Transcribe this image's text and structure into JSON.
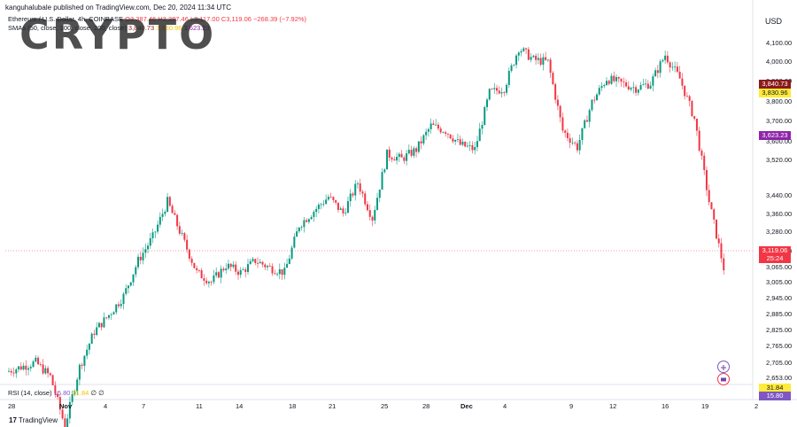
{
  "header": {
    "publisher": "kanguhalubale published on TradingView.com, Dec 20, 2024 11:34 UTC",
    "symbol": "Ethereum / U.S. Dollar, 4h, COINBASE",
    "ohlc": "O3,387.46 H3,387.46 L3,117.00 C3,119.06 −268.39 (−7.92%)",
    "smas_label": "SMAs (50, close, 100, close, 200, close)",
    "sma_values": [
      "3,840.73",
      "3,830.96",
      "3,623.23"
    ]
  },
  "watermark": "CRYPTO",
  "currency": "USD",
  "price_axis": [
    "4,100.00",
    "4,000.00",
    "3,900.00",
    "3,800.00",
    "3,700.00",
    "3,600.00",
    "3,520.00",
    "3,440.00",
    "3,360.00",
    "3,280.00",
    "3,200.00",
    "3,065.00",
    "3,005.00",
    "2,945.00",
    "2,885.00",
    "2,825.00",
    "2,765.00",
    "2,705.00",
    "2,653.00"
  ],
  "price_tags": {
    "sma50": "3,840.73",
    "sma100": "3,830.96",
    "sma200": "3,623.23",
    "last": "3,119.06",
    "countdown": "25:24",
    "rsi": "31.84",
    "rsi_value": "15.80"
  },
  "time_axis": [
    "28",
    "Nov",
    "4",
    "7",
    "11",
    "14",
    "18",
    "21",
    "25",
    "28",
    "Dec",
    "4",
    "9",
    "12",
    "16",
    "19",
    "2"
  ],
  "rsi": {
    "label": "RSI (14, close)",
    "value": "15.80",
    "smoothing": "31.84",
    "extra": "∅ ∅"
  },
  "footer": {
    "brand": "TradingView"
  },
  "colors": {
    "up": "#089981",
    "down": "#f23645",
    "sma50": "#8b1a1a",
    "sma100": "#ffeb3b",
    "sma200": "#8e24aa",
    "rsi": "#7e57c2"
  },
  "chart_data": {
    "type": "candlestick",
    "title": "Ethereum / U.S. Dollar, 4h, COINBASE",
    "ylabel": "USD",
    "ylim": [
      2630,
      4140
    ],
    "x_ticks": [
      "28",
      "Nov",
      "4",
      "7",
      "11",
      "14",
      "18",
      "21",
      "25",
      "28",
      "Dec",
      "4",
      "9",
      "12",
      "16",
      "19",
      "2"
    ],
    "series": [
      {
        "name": "ETHUSD",
        "close_path": [
          [
            "Oct 27",
            2680
          ],
          [
            "Oct 28",
            2700
          ],
          [
            "Oct 29",
            2720
          ],
          [
            "Oct 30",
            2660
          ],
          [
            "Nov 5",
            2450
          ],
          [
            "Nov 6",
            2700
          ],
          [
            "Nov 7",
            2850
          ],
          [
            "Nov 8",
            2920
          ],
          [
            "Nov 9",
            3000
          ],
          [
            "Nov 10",
            3150
          ],
          [
            "Nov 11",
            3250
          ],
          [
            "Nov 12",
            3400
          ],
          [
            "Nov 13",
            3250
          ],
          [
            "Nov 14",
            3100
          ],
          [
            "Nov 15",
            3060
          ],
          [
            "Nov 16",
            3130
          ],
          [
            "Nov 17",
            3100
          ],
          [
            "Nov 18",
            3150
          ],
          [
            "Nov 19",
            3120
          ],
          [
            "Nov 20",
            3100
          ],
          [
            "Nov 21",
            3300
          ],
          [
            "Nov 22",
            3360
          ],
          [
            "Nov 23",
            3420
          ],
          [
            "Nov 24",
            3350
          ],
          [
            "Nov 25",
            3480
          ],
          [
            "Nov 26",
            3330
          ],
          [
            "Nov 27",
            3600
          ],
          [
            "Nov 28",
            3580
          ],
          [
            "Nov 29",
            3620
          ],
          [
            "Nov 30",
            3720
          ],
          [
            "Dec 1",
            3700
          ],
          [
            "Dec 2",
            3640
          ],
          [
            "Dec 3",
            3620
          ],
          [
            "Dec 4",
            3860
          ],
          [
            "Dec 5",
            3880
          ],
          [
            "Dec 6",
            4050
          ],
          [
            "Dec 7",
            4000
          ],
          [
            "Dec 8",
            3990
          ],
          [
            "Dec 9",
            3700
          ],
          [
            "Dec 10",
            3630
          ],
          [
            "Dec 11",
            3820
          ],
          [
            "Dec 12",
            3920
          ],
          [
            "Dec 13",
            3900
          ],
          [
            "Dec 14",
            3880
          ],
          [
            "Dec 15",
            3900
          ],
          [
            "Dec 16",
            4020
          ],
          [
            "Dec 17",
            3920
          ],
          [
            "Dec 18",
            3750
          ],
          [
            "Dec 19",
            3400
          ],
          [
            "Dec 20",
            3119
          ]
        ]
      }
    ]
  }
}
